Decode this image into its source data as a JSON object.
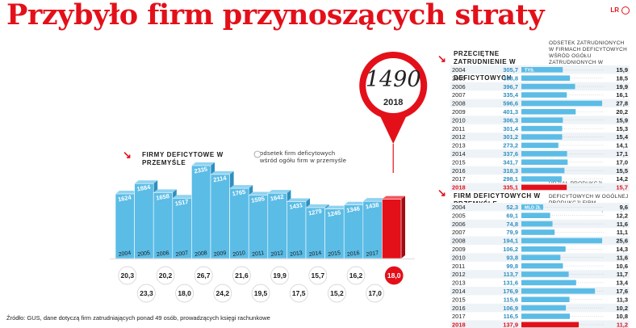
{
  "title": "Przybyło firm przynoszących straty",
  "logo": "LR",
  "left": {
    "label": "Firmy deficytowe w przemyśle",
    "legend": "odsetek firm deficytowych wśród ogółu firm w przemyśle"
  },
  "table1": {
    "label": "Przeciętne zatrudnienie w firmach deficytowych",
    "note": "odsetek zatrudnionych w firmach deficytowych wśród ogółu zatrudnionych w przemyśle",
    "unit": "tys."
  },
  "table2": {
    "label": "Produkcja sprzedana firm deficytowych w przemyśle",
    "note": "udział produkcji sprzedanej firm deficytowych w ogólnej produkcji firm przemysłowych (proc.)",
    "unit": "mld zł"
  },
  "source": "Źródło: GUS, dane dotyczą firm zatrudniających ponad 49 osób, prowadzących księgi rachunkowe",
  "colors": {
    "accent": "#e3101a",
    "bar": "#5bbce6",
    "bar_dark": "#2f8fbf",
    "pin": "#e3101a"
  },
  "chart_data": [
    {
      "type": "bar",
      "title": "Firmy deficytowe w przemyśle",
      "categories": [
        "2004",
        "2005",
        "2006",
        "2007",
        "2008",
        "2009",
        "2010",
        "2011",
        "2012",
        "2013",
        "2014",
        "2015",
        "2016",
        "2017",
        "2018"
      ],
      "values": [
        1624,
        1884,
        1658,
        1517,
        2335,
        2114,
        1765,
        1595,
        1642,
        1431,
        1279,
        1245,
        1346,
        1438,
        1490
      ],
      "share": [
        20.3,
        23.3,
        20.2,
        18.0,
        26.7,
        24.2,
        21.6,
        19.5,
        19.9,
        17.5,
        15.7,
        15.2,
        16.2,
        17.0,
        18.0
      ],
      "highlight": {
        "year": "2018",
        "value": "1490",
        "share": "18,0"
      }
    },
    {
      "type": "bar",
      "title": "Przeciętne zatrudnienie w firmach deficytowych",
      "unit": "tys.",
      "categories": [
        "2004",
        "2005",
        "2006",
        "2007",
        "2008",
        "2009",
        "2010",
        "2011",
        "2012",
        "2013",
        "2014",
        "2015",
        "2016",
        "2017",
        "2018"
      ],
      "values": [
        305.7,
        358.8,
        396.7,
        335.4,
        596.6,
        401.3,
        306.3,
        301.4,
        301.2,
        273.2,
        337.6,
        341.7,
        318.3,
        298.1,
        335.1
      ],
      "share": [
        15.9,
        18.5,
        19.9,
        16.1,
        27.8,
        20.2,
        15.9,
        15.3,
        15.4,
        14.1,
        17.1,
        17.0,
        15.5,
        14.2,
        15.7
      ]
    },
    {
      "type": "bar",
      "title": "Produkcja sprzedana firm deficytowych w przemyśle",
      "unit": "mld zł",
      "categories": [
        "2004",
        "2005",
        "2006",
        "2007",
        "2008",
        "2009",
        "2010",
        "2011",
        "2012",
        "2013",
        "2014",
        "2015",
        "2016",
        "2017",
        "2018"
      ],
      "values": [
        52.3,
        69.1,
        74.8,
        79.9,
        194.1,
        106.2,
        93.8,
        99.8,
        113.7,
        131.6,
        176.9,
        115.6,
        106.9,
        116.5,
        137.9
      ],
      "share": [
        9.6,
        12.2,
        11.6,
        11.1,
        25.6,
        14.3,
        11.6,
        10.6,
        11.7,
        13.4,
        17.6,
        11.3,
        10.2,
        10.8,
        11.2
      ]
    }
  ],
  "display": {
    "big": [
      "1624",
      "1884",
      "1658",
      "1517",
      "2335",
      "2114",
      "1765",
      "1595",
      "1642",
      "1431",
      "1279",
      "1245",
      "1346",
      "1438",
      "1490"
    ],
    "bigshare": [
      "20,3",
      "23,3",
      "20,2",
      "18,0",
      "26,7",
      "24,2",
      "21,6",
      "19,5",
      "19,9",
      "17,5",
      "15,7",
      "15,2",
      "16,2",
      "17,0",
      "18,0"
    ],
    "t1v": [
      "305,7",
      "358,8",
      "396,7",
      "335,4",
      "596,6",
      "401,3",
      "306,3",
      "301,4",
      "301,2",
      "273,2",
      "337,6",
      "341,7",
      "318,3",
      "298,1",
      "335,1"
    ],
    "t1s": [
      "15,9",
      "18,5",
      "19,9",
      "16,1",
      "27,8",
      "20,2",
      "15,9",
      "15,3",
      "15,4",
      "14,1",
      "17,1",
      "17,0",
      "15,5",
      "14,2",
      "15,7"
    ],
    "t2v": [
      "52,3",
      "69,1",
      "74,8",
      "79,9",
      "194,1",
      "106,2",
      "93,8",
      "99,8",
      "113,7",
      "131,6",
      "176,9",
      "115,6",
      "106,9",
      "116,5",
      "137,9"
    ],
    "t2s": [
      "9,6",
      "12,2",
      "11,6",
      "11,1",
      "25,6",
      "14,3",
      "11,6",
      "10,6",
      "11,7",
      "13,4",
      "17,6",
      "11,3",
      "10,2",
      "10,8",
      "11,2"
    ]
  }
}
